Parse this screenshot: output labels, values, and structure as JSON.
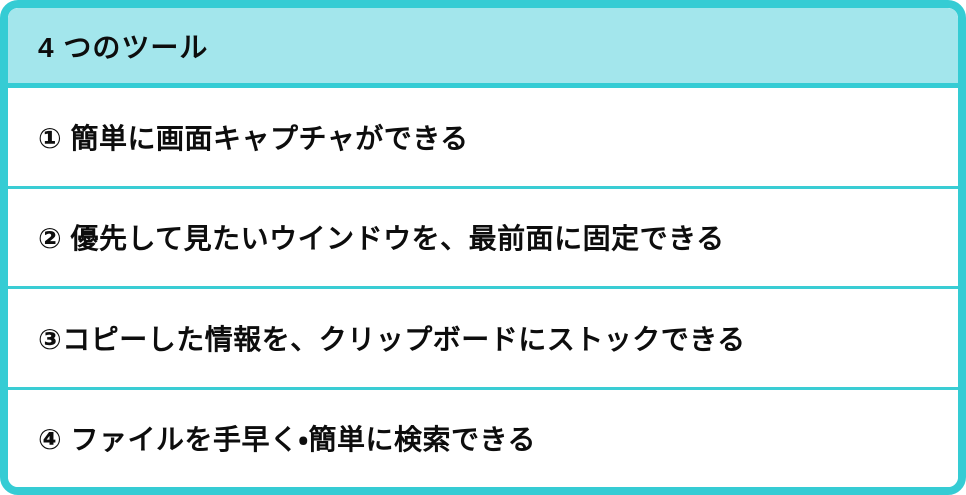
{
  "card": {
    "title": "4 つのツール",
    "rows": [
      {
        "label": "① 簡単に画面キャプチャができる"
      },
      {
        "label": "② 優先して見たいウインドウを、最前面に固定できる"
      },
      {
        "label": "③コピーした情報を、クリップボードにストックできる"
      },
      {
        "label": "④ ファイルを手早く・簡単に検索できる"
      }
    ],
    "colors": {
      "border": "#35ccd4",
      "header_bg": "#a3e6ec",
      "separator": "#3acdd4",
      "row_bg": "#ffffff",
      "text": "#0d0d0d"
    }
  }
}
